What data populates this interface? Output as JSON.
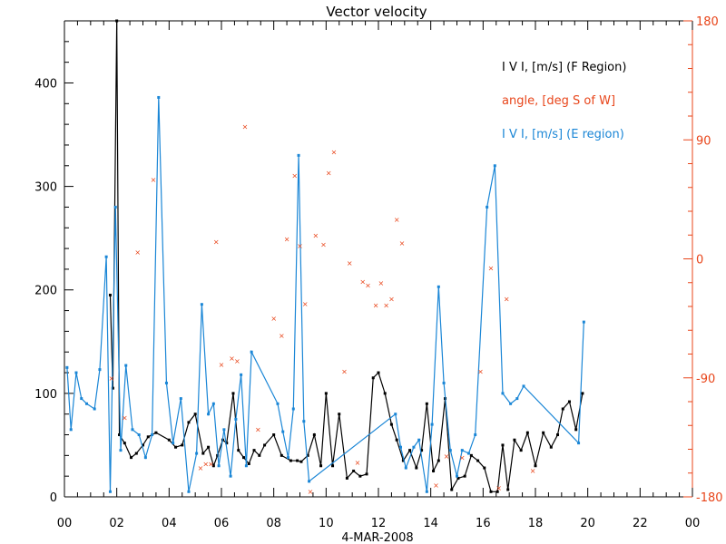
{
  "chart_data": {
    "type": "line",
    "title": "Vector velocity",
    "xlabel": "4-MAR-2008",
    "xlim": [
      0,
      24
    ],
    "ylim_left": [
      0,
      460
    ],
    "ylim_right": [
      -180,
      180
    ],
    "x_ticks": [
      "00",
      "02",
      "04",
      "06",
      "08",
      "10",
      "12",
      "14",
      "16",
      "18",
      "20",
      "22",
      "00"
    ],
    "y_ticks_left": [
      "0",
      "100",
      "200",
      "300",
      "400"
    ],
    "y_ticks_right": [
      "-180",
      "-90",
      "0",
      "90",
      "180"
    ],
    "legend": [
      {
        "label": "I V I, [m/s] (F Region)",
        "color": "#000000"
      },
      {
        "label": "angle, [deg S of W]",
        "color": "#e8451a"
      },
      {
        "label": "I V I, [m/s] (E region)",
        "color": "#1a86d6"
      }
    ],
    "series": [
      {
        "name": "I V I, [m/s] (F Region)",
        "axis": "left",
        "color": "#000000",
        "x": [
          1.75,
          1.85,
          2.0,
          2.1,
          2.3,
          2.55,
          2.75,
          3.0,
          3.2,
          3.5,
          4.0,
          4.25,
          4.5,
          4.75,
          5.0,
          5.3,
          5.5,
          5.7,
          5.85,
          6.05,
          6.2,
          6.45,
          6.65,
          6.85,
          7.05,
          7.25,
          7.45,
          7.65,
          8.0,
          8.3,
          8.65,
          8.9,
          9.05,
          9.3,
          9.55,
          9.8,
          10.0,
          10.25,
          10.5,
          10.8,
          11.05,
          11.3,
          11.55,
          11.8,
          12.0,
          12.25,
          12.5,
          12.7,
          12.95,
          13.2,
          13.45,
          13.65,
          13.85,
          14.1,
          14.3,
          14.55,
          14.8,
          15.05,
          15.3,
          15.55,
          15.8,
          16.05,
          16.3,
          16.55,
          16.75,
          16.95,
          17.2,
          17.45,
          17.7,
          18.0,
          18.3,
          18.6,
          18.85,
          19.05,
          19.3,
          19.55,
          19.8
        ],
        "y": [
          195,
          105,
          460,
          60,
          52,
          38,
          42,
          50,
          58,
          62,
          55,
          48,
          50,
          72,
          80,
          42,
          48,
          30,
          40,
          55,
          52,
          100,
          45,
          38,
          32,
          45,
          40,
          50,
          60,
          40,
          35,
          35,
          34,
          40,
          60,
          30,
          100,
          30,
          80,
          18,
          25,
          20,
          22,
          115,
          120,
          100,
          70,
          55,
          35,
          45,
          28,
          45,
          90,
          25,
          35,
          95,
          7,
          18,
          20,
          40,
          35,
          28,
          5,
          5,
          50,
          7,
          55,
          45,
          62,
          30,
          62,
          48,
          60,
          85,
          92,
          65,
          100
        ]
      },
      {
        "name": "I V I, [m/s] (E region)",
        "axis": "left",
        "color": "#1a86d6",
        "x": [
          0.1,
          0.25,
          0.45,
          0.65,
          0.85,
          1.15,
          1.35,
          1.6,
          1.75,
          1.95,
          2.15,
          2.35,
          2.6,
          2.85,
          3.1,
          3.35,
          3.6,
          3.9,
          4.15,
          4.45,
          4.75,
          5.05,
          5.25,
          5.5,
          5.7,
          5.9,
          6.1,
          6.35,
          6.55,
          6.75,
          6.95,
          7.15,
          8.15,
          8.35,
          8.55,
          8.75,
          8.95,
          9.15,
          9.35,
          12.65,
          12.85,
          13.05,
          13.35,
          13.55,
          13.85,
          14.05,
          14.3,
          14.5,
          14.75,
          15.0,
          15.2,
          15.45,
          15.7,
          16.15,
          16.45,
          16.75,
          17.05,
          17.3,
          17.55,
          19.65,
          19.85
        ],
        "y": [
          125,
          65,
          120,
          95,
          90,
          85,
          123,
          232,
          5,
          280,
          45,
          127,
          65,
          60,
          38,
          60,
          386,
          110,
          52,
          95,
          5,
          42,
          186,
          80,
          90,
          30,
          65,
          20,
          75,
          118,
          30,
          140,
          90,
          63,
          38,
          85,
          330,
          73,
          15,
          80,
          48,
          28,
          48,
          55,
          5,
          70,
          203,
          110,
          45,
          20,
          45,
          42,
          60,
          280,
          320,
          100,
          90,
          95,
          107,
          52,
          169
        ]
      },
      {
        "name": "angle, [deg S of W]",
        "axis": "right",
        "color": "#e8451a",
        "x": [
          1.8,
          2.3,
          2.8,
          3.4,
          5.2,
          5.4,
          5.6,
          5.8,
          6.0,
          6.4,
          6.6,
          6.9,
          7.4,
          8.0,
          8.3,
          8.5,
          8.8,
          9.0,
          9.2,
          9.4,
          9.6,
          9.9,
          10.1,
          10.3,
          10.7,
          10.9,
          11.2,
          11.4,
          11.6,
          11.9,
          12.1,
          12.3,
          12.5,
          12.7,
          12.9,
          14.2,
          14.6,
          15.2,
          15.9,
          16.3,
          16.6,
          16.9,
          17.9
        ],
        "y": [
          -90,
          -120,
          5,
          60,
          -158,
          -155,
          -155,
          13,
          -80,
          -75,
          -77,
          100,
          -129,
          -45,
          -58,
          15,
          63,
          10,
          -34,
          -176,
          18,
          11,
          65,
          81,
          -85,
          -3,
          -154,
          -17,
          -20,
          -35,
          -18,
          -35,
          -30,
          30,
          12,
          -171,
          -149,
          -150,
          -85,
          -7,
          -173,
          -30,
          -160
        ]
      }
    ]
  }
}
